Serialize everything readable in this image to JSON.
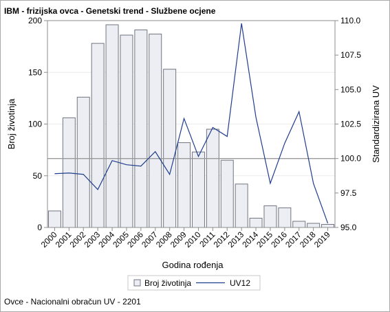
{
  "title": "IBM - frizijska ovca - Genetski trend - Službene ocjene",
  "footnote": "Ovce - Nacionalni obračun UV - 2201",
  "chart_data": {
    "type": "bar+line",
    "title": "IBM - frizijska ovca - Genetski trend - Službene ocjene",
    "xlabel": "Godina rođenja",
    "ylabel_left": "Broj životinja",
    "ylabel_right": "Standardizirana UV",
    "categories": [
      "2000",
      "2001",
      "2002",
      "2003",
      "2004",
      "2005",
      "2006",
      "2007",
      "2008",
      "2009",
      "2010",
      "2011",
      "2012",
      "2013",
      "2014",
      "2015",
      "2016",
      "2017",
      "2018",
      "2019"
    ],
    "y_left_ticks": [
      0,
      50,
      100,
      150,
      200
    ],
    "y_left_lim": [
      0,
      200
    ],
    "y_right_ticks": [
      "95.0",
      "97.5",
      "100.0",
      "102.5",
      "105.0",
      "107.5",
      "110.0"
    ],
    "y_right_lim": [
      95.0,
      110.0
    ],
    "reference_line_right": 100.0,
    "series": [
      {
        "name": "Broj životinja",
        "type": "bar",
        "axis": "left",
        "color_fill": "#eceef3",
        "color_stroke": "#6f7480",
        "values": [
          16,
          106,
          126,
          178,
          196,
          186,
          191,
          187,
          153,
          82,
          73,
          95,
          65,
          42,
          9,
          21,
          19,
          6,
          4,
          3
        ]
      },
      {
        "name": "UV12",
        "type": "line",
        "axis": "right",
        "color": "#1f3d8c",
        "values": [
          98.9,
          98.95,
          98.85,
          97.75,
          99.85,
          99.55,
          99.45,
          100.5,
          98.85,
          102.9,
          100.15,
          102.25,
          101.6,
          109.8,
          103.0,
          98.2,
          101.1,
          103.4,
          98.2,
          95.3
        ]
      }
    ],
    "legend_position": "bottom-center",
    "grid": true
  }
}
